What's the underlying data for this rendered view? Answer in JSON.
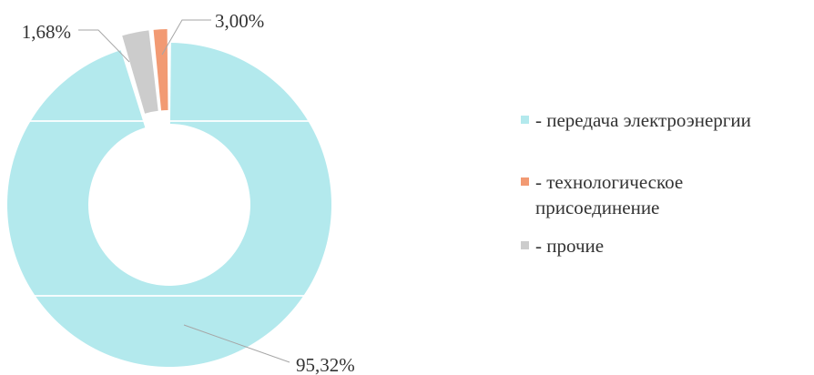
{
  "chart_data": {
    "type": "donut",
    "title": "",
    "series": [
      {
        "name": "- передача электроэнергии",
        "value": 95.32,
        "label": "95,32%",
        "color": "#b3e9ed"
      },
      {
        "name": "- технологическое присоединение",
        "value": 1.68,
        "label": "1,68%",
        "color": "#f29a73"
      },
      {
        "name": "- прочие",
        "value": 3.0,
        "label": "3,00%",
        "color": "#cccccc"
      }
    ],
    "legend_position": "right",
    "legend_lines": [
      [
        "- передача электроэнергии"
      ],
      [
        "- технологическое",
        "присоединение"
      ],
      [
        "- прочие"
      ]
    ]
  }
}
